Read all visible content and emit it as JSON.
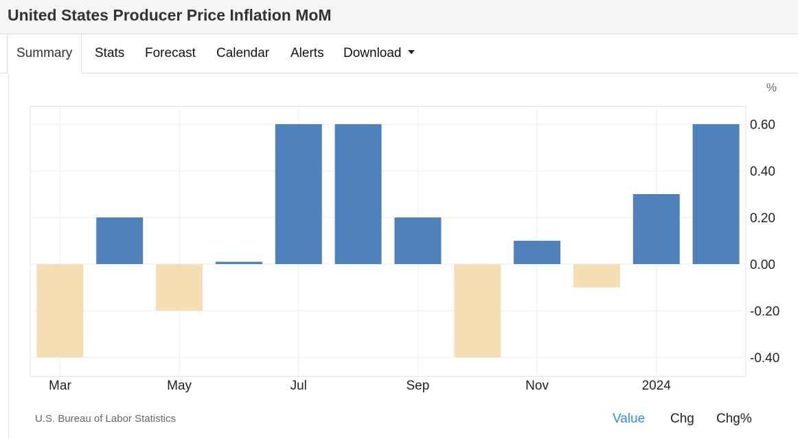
{
  "page": {
    "title": "United States Producer Price Inflation MoM",
    "tabs": [
      {
        "label": "Summary",
        "active": true
      },
      {
        "label": "Stats"
      },
      {
        "label": "Forecast"
      },
      {
        "label": "Calendar"
      },
      {
        "label": "Alerts"
      },
      {
        "label": "Download",
        "has_dropdown": true
      }
    ],
    "source": "U.S. Bureau of Labor Statistics",
    "modes": [
      {
        "label": "Value",
        "selected": true
      },
      {
        "label": "Chg"
      },
      {
        "label": "Chg%"
      }
    ],
    "colors": {
      "positive": "#4f81bd",
      "negative": "#f5deb3",
      "selected_mode": "#2f8fd8"
    }
  },
  "chart_data": {
    "type": "bar",
    "unit_label": "%",
    "periods": [
      "Mar",
      "Apr",
      "May",
      "Jun",
      "Jul",
      "Aug",
      "Sep",
      "Oct",
      "Nov",
      "Dec",
      "2024",
      "Feb"
    ],
    "values": [
      -0.4,
      0.2,
      -0.2,
      0.01,
      0.6,
      0.6,
      0.2,
      -0.4,
      0.1,
      -0.1,
      0.3,
      0.6
    ],
    "x_tick_labels": [
      {
        "index": 0,
        "label": "Mar"
      },
      {
        "index": 2,
        "label": "May"
      },
      {
        "index": 4,
        "label": "Jul"
      },
      {
        "index": 6,
        "label": "Sep"
      },
      {
        "index": 8,
        "label": "Nov"
      },
      {
        "index": 10,
        "label": "2024"
      }
    ],
    "y_ticks": [
      "0.60",
      "0.40",
      "0.20",
      "0.00",
      "-0.20",
      "-0.40"
    ],
    "ylim": [
      -0.47,
      0.68
    ],
    "y_axis_position": "right",
    "grid": true
  }
}
